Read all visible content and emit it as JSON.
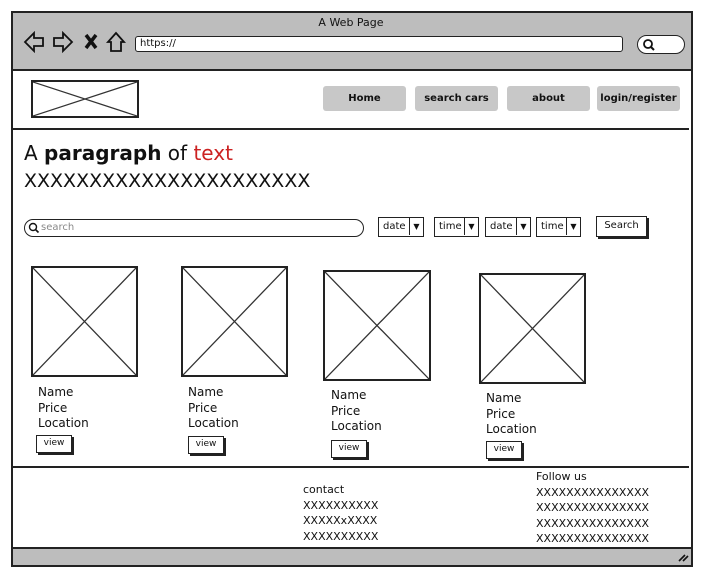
{
  "window": {
    "title": "A Web Page",
    "url": "https://"
  },
  "nav": {
    "items": [
      "Home",
      "search cars",
      "about",
      "login/register"
    ]
  },
  "hero": {
    "text_a": "A ",
    "text_b": "paragraph",
    "text_c": " of ",
    "text_d": "text",
    "xline": "XXXXXXXXXXXXXXXXXXXXXX"
  },
  "filters": {
    "search_placeholder": "search",
    "selects": [
      "date",
      "time",
      "date",
      "time"
    ],
    "search_button": "Search"
  },
  "cards": [
    {
      "name": "Name",
      "price": "Price",
      "location": "Location",
      "button": "view"
    },
    {
      "name": "Name",
      "price": "Price",
      "location": "Location",
      "button": "view"
    },
    {
      "name": "Name",
      "price": "Price",
      "location": "Location",
      "button": "view"
    },
    {
      "name": "Name",
      "price": "Price",
      "location": "Location",
      "button": "view"
    }
  ],
  "footer": {
    "contact_title": "contact",
    "contact_lines": [
      "XXXXXXXXXX",
      "XXXXXxXXXX",
      "XXXXXXXXXX"
    ],
    "follow_title": "Follow us",
    "follow_lines": [
      "XXXXXXXXXXXXXXX",
      "XXXXXXXXXXXXXXX",
      "XXXXXXXXXXXXXXX",
      "XXXXXXXXXXXXXXX"
    ]
  },
  "colors": {
    "chrome": "#bdbdbd",
    "nav_button": "#c8c8c8",
    "accent": "#cc2222"
  }
}
